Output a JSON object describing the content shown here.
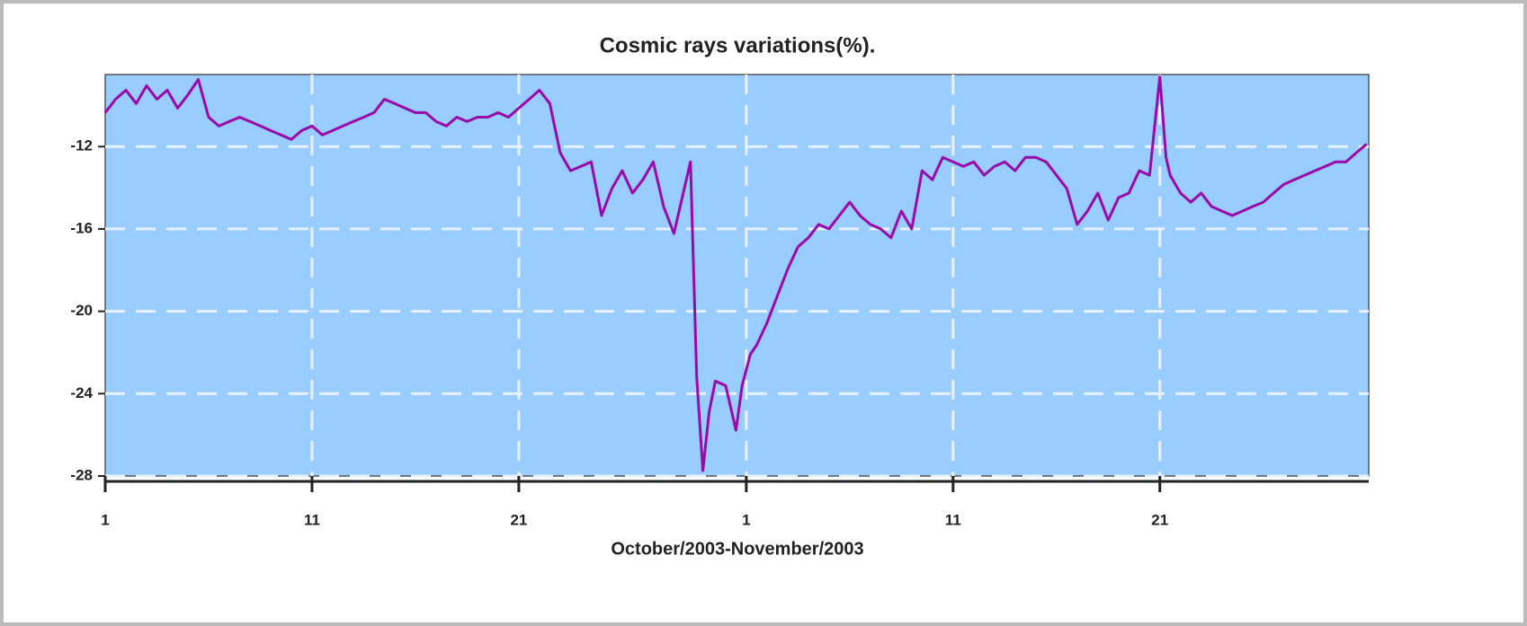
{
  "chart_data": {
    "type": "line",
    "title": "Cosmic rays variations(%).",
    "x_label": "October/2003-November/2003",
    "x": [
      0,
      0.5,
      1,
      1.5,
      2,
      2.5,
      3,
      3.5,
      4,
      4.5,
      5,
      5.5,
      6,
      6.5,
      7,
      7.5,
      8,
      8.5,
      9,
      9.5,
      10,
      10.5,
      11,
      11.5,
      12,
      12.5,
      13,
      13.5,
      14,
      14.5,
      15,
      15.5,
      16,
      16.5,
      17,
      17.5,
      18,
      18.5,
      19,
      19.5,
      20,
      20.5,
      21,
      21.5,
      22,
      22.5,
      23,
      23.5,
      24,
      24.5,
      25,
      25.5,
      26,
      26.5,
      27,
      27.5,
      28,
      28.3,
      28.6,
      28.9,
      29.2,
      29.5,
      30,
      30.5,
      30.8,
      31.2,
      31.5,
      32,
      32.5,
      33,
      33.5,
      34,
      34.5,
      35,
      35.5,
      36,
      36.5,
      37,
      37.5,
      38,
      38.5,
      39,
      39.5,
      40,
      40.5,
      41,
      41.5,
      42,
      42.5,
      43,
      43.5,
      44,
      44.5,
      45,
      45.5,
      46,
      46.5,
      47,
      47.5,
      48,
      48.5,
      49,
      49.5,
      50,
      50.5,
      51,
      51.3,
      51.5,
      52,
      52.5,
      53,
      53.5,
      54,
      54.5,
      55,
      55.5,
      56,
      56.5,
      57,
      57.5,
      58,
      58.5,
      59,
      59.5,
      60,
      60.5,
      61
    ],
    "series": [
      {
        "color": "#9a0aa8",
        "values": [
          -10.35,
          -9.7,
          -9.26,
          -9.91,
          -9.04,
          -9.7,
          -9.26,
          -10.13,
          -9.48,
          -8.74,
          -10.57,
          -11.0,
          -10.78,
          -10.57,
          -10.78,
          -11.0,
          -11.22,
          -11.43,
          -11.65,
          -11.22,
          -11.0,
          -11.43,
          -11.22,
          -11.0,
          -10.78,
          -10.57,
          -10.35,
          -9.7,
          -9.91,
          -10.13,
          -10.35,
          -10.35,
          -10.78,
          -11.0,
          -10.57,
          -10.78,
          -10.57,
          -10.57,
          -10.35,
          -10.57,
          -10.13,
          -9.7,
          -9.26,
          -9.91,
          -12.3,
          -13.17,
          -12.96,
          -12.74,
          -15.35,
          -14.04,
          -13.17,
          -14.26,
          -13.61,
          -12.74,
          -14.91,
          -16.22,
          -14.04,
          -12.74,
          -23.17,
          -27.74,
          -24.91,
          -23.39,
          -23.61,
          -25.78,
          -23.61,
          -22.09,
          -21.65,
          -20.57,
          -19.26,
          -17.96,
          -16.87,
          -16.43,
          -15.78,
          -16.0,
          -15.35,
          -14.7,
          -15.35,
          -15.78,
          -16.0,
          -16.43,
          -15.13,
          -16.0,
          -13.17,
          -13.61,
          -12.52,
          -12.74,
          -12.96,
          -12.74,
          -13.39,
          -12.96,
          -12.74,
          -13.17,
          -12.52,
          -12.52,
          -12.74,
          -13.39,
          -14.04,
          -15.78,
          -15.13,
          -14.26,
          -15.57,
          -14.48,
          -14.26,
          -13.17,
          -13.39,
          -8.61,
          -12.52,
          -13.39,
          -14.26,
          -14.7,
          -14.26,
          -14.91,
          -15.13,
          -15.35,
          -15.13,
          -14.91,
          -14.7,
          -14.26,
          -13.83,
          -13.61,
          -13.39,
          -13.17,
          -12.96,
          -12.74,
          -12.74,
          -12.3,
          -11.87
        ]
      }
    ],
    "xlim": [
      0,
      61.1
    ],
    "xticks": [
      {
        "value": 0,
        "label": "1"
      },
      {
        "value": 10,
        "label": "11"
      },
      {
        "value": 20,
        "label": "21"
      },
      {
        "value": 31,
        "label": "1"
      },
      {
        "value": 41,
        "label": "11"
      },
      {
        "value": 51,
        "label": "21"
      }
    ],
    "ylim": [
      -28,
      -8.5
    ],
    "yticks": [
      -12,
      -16,
      -20,
      -24,
      -28
    ],
    "grid": true,
    "plot_background": "#99ccff"
  }
}
